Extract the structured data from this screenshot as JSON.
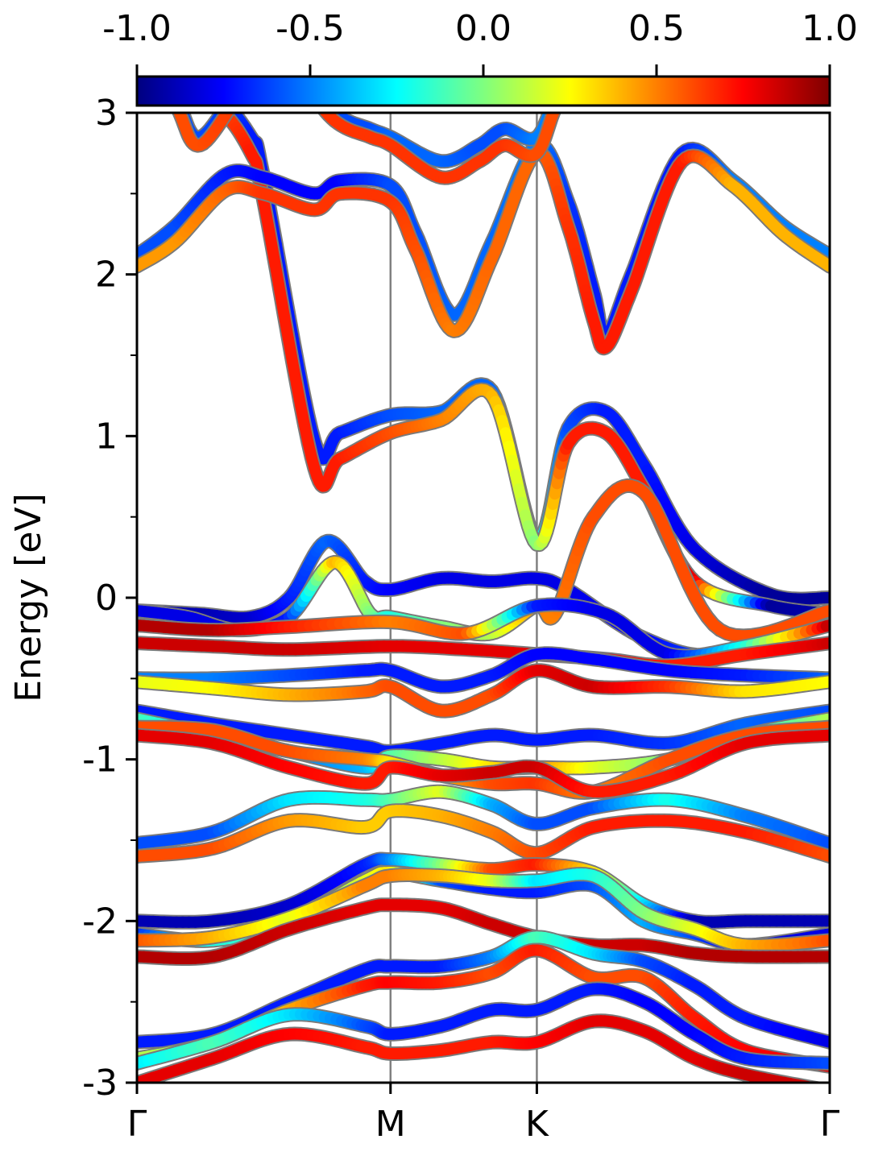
{
  "chart_data": {
    "type": "line",
    "ylabel": "Energy [eV]",
    "xlabel": "",
    "ylim": [
      -3,
      3
    ],
    "y_ticks": [
      "-3",
      "-2",
      "-1",
      "0",
      "1",
      "2",
      "3"
    ],
    "k_path": {
      "labels": [
        "Γ",
        "M",
        "K",
        "Γ"
      ],
      "positions": [
        0,
        1,
        1.577,
        2.732
      ]
    },
    "colorbar": {
      "colormap": "jet",
      "range": [
        -1.0,
        1.0
      ],
      "tick_labels": [
        "-1.0",
        "-0.5",
        "0.0",
        "0.5",
        "1.0"
      ],
      "stops": [
        "#00007f",
        "#0000ff",
        "#007fff",
        "#00ffff",
        "#7fff7f",
        "#ffff00",
        "#ff7f00",
        "#ff0000",
        "#7f0000"
      ]
    },
    "series": [
      {
        "x": [
          0,
          0.3,
          0.45,
          0.5,
          0.7,
          0.8,
          1.0,
          1.2,
          1.4,
          1.577,
          1.7,
          1.85,
          2.0,
          2.2,
          2.5,
          2.732
        ],
        "y": [
          3.2,
          3.1,
          2.85,
          2.6,
          0.97,
          1.02,
          1.13,
          1.15,
          1.28,
          0.36,
          1.05,
          1.15,
          0.82,
          0.3,
          0.02,
          0.0
        ],
        "w": [
          -0.6,
          -0.6,
          -0.7,
          -0.7,
          -0.7,
          -0.7,
          -0.6,
          -0.55,
          -0.55,
          -0.2,
          -0.6,
          -0.7,
          -0.7,
          -0.8,
          -0.95,
          -0.95
        ]
      },
      {
        "x": [
          0,
          0.3,
          0.45,
          0.5,
          0.7,
          0.8,
          1.0,
          1.2,
          1.4,
          1.577,
          1.7,
          1.85,
          2.0,
          2.2,
          2.5,
          2.732
        ],
        "y": [
          3.2,
          3.05,
          2.75,
          2.45,
          0.8,
          0.86,
          1.02,
          1.1,
          1.25,
          0.33,
          0.95,
          1.02,
          0.67,
          0.1,
          -0.05,
          -0.1
        ],
        "w": [
          0.6,
          0.6,
          0.7,
          0.7,
          0.7,
          0.7,
          0.6,
          0.5,
          0.4,
          0.0,
          0.7,
          0.7,
          0.7,
          0.8,
          -0.95,
          -0.9
        ]
      },
      {
        "x": [
          0,
          0.15,
          0.35,
          0.5,
          0.7,
          0.8,
          1.0,
          1.1,
          1.25,
          1.4,
          1.577,
          1.7,
          1.8,
          1.85,
          1.95,
          2.15,
          2.35,
          2.55,
          2.732
        ],
        "y": [
          2.12,
          2.3,
          2.62,
          2.6,
          2.5,
          2.58,
          2.55,
          2.25,
          1.75,
          2.2,
          2.8,
          2.45,
          1.9,
          1.62,
          2.0,
          2.75,
          2.58,
          2.3,
          2.12
        ],
        "w": [
          -0.6,
          -0.6,
          -0.7,
          -0.75,
          -0.75,
          -0.75,
          -0.6,
          -0.6,
          -0.55,
          -0.55,
          -0.5,
          -0.65,
          -0.7,
          -0.7,
          -0.7,
          -0.7,
          -0.5,
          -0.5,
          -0.5
        ]
      },
      {
        "x": [
          0,
          0.15,
          0.35,
          0.5,
          0.7,
          0.8,
          1.0,
          1.1,
          1.25,
          1.4,
          1.577,
          1.7,
          1.8,
          1.85,
          1.95,
          2.15,
          2.35,
          2.55,
          2.732
        ],
        "y": [
          2.05,
          2.2,
          2.52,
          2.5,
          2.4,
          2.5,
          2.45,
          2.15,
          1.65,
          2.1,
          2.75,
          2.3,
          1.72,
          1.55,
          1.9,
          2.7,
          2.55,
          2.25,
          2.05
        ],
        "w": [
          0.45,
          0.45,
          0.55,
          0.65,
          0.65,
          0.65,
          0.65,
          0.6,
          0.5,
          0.55,
          0.55,
          0.65,
          0.7,
          0.7,
          0.7,
          0.7,
          0.4,
          0.4,
          0.4
        ]
      },
      {
        "x": [
          0,
          0.15,
          0.25,
          0.45,
          0.6,
          0.78,
          0.92,
          1.0,
          1.2,
          1.35,
          1.45,
          1.577,
          1.7,
          2.0,
          2.732
        ],
        "y": [
          3.4,
          3.1,
          2.85,
          3.25,
          3.3,
          3.0,
          2.9,
          2.85,
          2.7,
          2.8,
          2.9,
          2.85,
          3.2,
          3.4,
          3.5
        ],
        "w": [
          -0.6,
          -0.6,
          -0.6,
          -0.65,
          -0.65,
          -0.6,
          -0.6,
          -0.55,
          -0.55,
          -0.6,
          -0.6,
          -0.5,
          -0.5,
          -0.5,
          -0.5
        ]
      },
      {
        "x": [
          0,
          0.15,
          0.25,
          0.45,
          0.6,
          0.78,
          0.92,
          1.0,
          1.2,
          1.35,
          1.45,
          1.577,
          1.7,
          2.0,
          2.732
        ],
        "y": [
          3.35,
          3.05,
          2.8,
          3.2,
          3.25,
          2.95,
          2.85,
          2.8,
          2.6,
          2.7,
          2.8,
          2.75,
          3.15,
          3.35,
          3.45
        ],
        "w": [
          0.6,
          0.6,
          0.6,
          0.65,
          0.65,
          0.65,
          0.65,
          0.65,
          0.65,
          0.65,
          0.65,
          0.6,
          0.6,
          0.6,
          0.6
        ]
      },
      {
        "x": [
          0,
          0.25,
          0.45,
          0.6,
          0.75,
          0.9,
          1.0,
          1.2,
          1.4,
          1.577,
          1.7,
          2.0,
          2.3,
          2.732
        ],
        "y": [
          -0.08,
          -0.1,
          -0.12,
          0.0,
          0.35,
          0.1,
          0.05,
          0.12,
          0.1,
          0.12,
          0.05,
          -0.25,
          -0.35,
          -0.08
        ],
        "w": [
          -0.9,
          -0.9,
          -0.85,
          -0.7,
          -0.55,
          -0.7,
          -0.75,
          -0.8,
          -0.8,
          -0.8,
          -0.8,
          -0.75,
          -0.6,
          -0.8
        ]
      },
      {
        "x": [
          0,
          0.2,
          0.4,
          0.6,
          0.78,
          0.92,
          1.0,
          1.2,
          1.4,
          1.577,
          1.65,
          1.8,
          2.0,
          2.3,
          2.732
        ],
        "y": [
          -0.08,
          -0.12,
          -0.2,
          -0.12,
          0.22,
          -0.1,
          -0.12,
          -0.18,
          -0.22,
          -0.05,
          -0.1,
          0.5,
          0.65,
          -0.2,
          -0.08
        ],
        "w": [
          -0.8,
          -0.8,
          -0.8,
          -0.7,
          0.4,
          0.0,
          -0.2,
          0.0,
          0.1,
          0.5,
          0.5,
          0.6,
          0.6,
          0.6,
          0.6
        ]
      },
      {
        "x": [
          0,
          0.3,
          0.6,
          1.0,
          1.3,
          1.577,
          1.85,
          2.1,
          2.4,
          2.732
        ],
        "y": [
          -0.17,
          -0.2,
          -0.18,
          -0.15,
          -0.22,
          -0.05,
          -0.1,
          -0.35,
          -0.3,
          -0.17
        ],
        "w": [
          0.9,
          0.9,
          0.7,
          0.5,
          0.6,
          -0.7,
          -0.8,
          -0.8,
          -0.2,
          0.9
        ]
      },
      {
        "x": [
          0,
          0.3,
          0.6,
          1.0,
          1.3,
          1.577,
          1.85,
          2.1,
          2.4,
          2.732
        ],
        "y": [
          -0.28,
          -0.3,
          -0.32,
          -0.3,
          -0.32,
          -0.35,
          -0.38,
          -0.42,
          -0.35,
          -0.28
        ],
        "w": [
          0.85,
          0.85,
          0.85,
          0.8,
          0.8,
          0.8,
          0.75,
          0.7,
          0.7,
          0.85
        ]
      },
      {
        "x": [
          0,
          0.3,
          0.6,
          0.9,
          1.0,
          1.2,
          1.4,
          1.577,
          1.8,
          2.1,
          2.4,
          2.732
        ],
        "y": [
          -0.5,
          -0.5,
          -0.48,
          -0.45,
          -0.45,
          -0.55,
          -0.48,
          -0.35,
          -0.38,
          -0.45,
          -0.48,
          -0.5
        ],
        "w": [
          -0.5,
          -0.5,
          -0.6,
          -0.7,
          -0.7,
          -0.7,
          -0.7,
          -0.75,
          -0.75,
          -0.75,
          -0.7,
          -0.55
        ]
      },
      {
        "x": [
          0,
          0.3,
          0.6,
          0.9,
          1.0,
          1.2,
          1.4,
          1.577,
          1.8,
          2.1,
          2.4,
          2.732
        ],
        "y": [
          -0.52,
          -0.56,
          -0.6,
          -0.58,
          -0.55,
          -0.7,
          -0.6,
          -0.45,
          -0.55,
          -0.55,
          -0.58,
          -0.52
        ],
        "w": [
          0.2,
          0.25,
          0.4,
          0.55,
          0.6,
          0.6,
          0.6,
          0.8,
          0.85,
          0.65,
          0.3,
          0.25
        ]
      },
      {
        "x": [
          0,
          0.3,
          0.6,
          0.9,
          1.0,
          1.2,
          1.4,
          1.577,
          1.8,
          2.1,
          2.4,
          2.732
        ],
        "y": [
          -0.7,
          -0.78,
          -0.85,
          -0.92,
          -0.95,
          -0.9,
          -0.85,
          -0.88,
          -0.85,
          -0.9,
          -0.78,
          -0.7
        ],
        "w": [
          -0.7,
          -0.7,
          -0.7,
          -0.7,
          -0.7,
          -0.7,
          -0.7,
          -0.7,
          -0.7,
          -0.65,
          -0.55,
          -0.6
        ]
      },
      {
        "x": [
          0,
          0.3,
          0.6,
          0.9,
          1.0,
          1.2,
          1.4,
          1.577,
          1.8,
          2.1,
          2.4,
          2.732
        ],
        "y": [
          -0.75,
          -0.85,
          -0.95,
          -1.05,
          -0.98,
          -1.0,
          -1.05,
          -1.05,
          -1.05,
          -1.0,
          -0.85,
          -0.75
        ],
        "w": [
          -0.1,
          -0.3,
          -0.5,
          -0.4,
          -0.1,
          0.1,
          0.3,
          0.5,
          0.2,
          0.0,
          -0.2,
          0.1
        ]
      },
      {
        "x": [
          0,
          0.3,
          0.6,
          0.9,
          1.0,
          1.2,
          1.4,
          1.577,
          1.8,
          2.1,
          2.4,
          2.732
        ],
        "y": [
          -0.8,
          -0.82,
          -0.95,
          -1.0,
          -1.02,
          -1.1,
          -1.15,
          -1.15,
          -1.2,
          -1.0,
          -0.85,
          -0.8
        ],
        "w": [
          0.6,
          0.6,
          0.6,
          0.5,
          0.3,
          0.4,
          0.6,
          0.65,
          0.5,
          0.6,
          0.6,
          0.6
        ]
      },
      {
        "x": [
          0,
          0.3,
          0.6,
          0.9,
          1.0,
          1.2,
          1.4,
          1.577,
          1.8,
          2.1,
          2.4,
          2.732
        ],
        "y": [
          -0.85,
          -0.9,
          -1.05,
          -1.15,
          -1.05,
          -1.1,
          -1.08,
          -1.05,
          -1.2,
          -1.1,
          -0.9,
          -0.85
        ],
        "w": [
          0.8,
          0.8,
          0.75,
          0.7,
          0.7,
          0.8,
          0.85,
          0.85,
          0.7,
          0.7,
          0.8,
          0.8
        ]
      },
      {
        "x": [
          0,
          0.3,
          0.6,
          0.9,
          1.0,
          1.2,
          1.4,
          1.577,
          1.8,
          2.1,
          2.4,
          2.732
        ],
        "y": [
          -1.52,
          -1.45,
          -1.25,
          -1.25,
          -1.25,
          -1.2,
          -1.28,
          -1.4,
          -1.3,
          -1.25,
          -1.35,
          -1.52
        ],
        "w": [
          -0.6,
          -0.6,
          -0.3,
          -0.2,
          -0.1,
          0.2,
          -0.4,
          -0.6,
          -0.6,
          -0.2,
          -0.5,
          -0.6
        ]
      },
      {
        "x": [
          0,
          0.3,
          0.6,
          0.9,
          1.0,
          1.2,
          1.4,
          1.577,
          1.8,
          2.1,
          2.4,
          2.732
        ],
        "y": [
          -1.6,
          -1.55,
          -1.38,
          -1.42,
          -1.32,
          -1.35,
          -1.45,
          -1.58,
          -1.42,
          -1.38,
          -1.45,
          -1.6
        ],
        "w": [
          0.6,
          0.6,
          0.45,
          0.35,
          0.35,
          0.4,
          0.5,
          0.6,
          0.7,
          0.7,
          0.7,
          0.6
        ]
      },
      {
        "x": [
          0,
          0.3,
          0.6,
          0.9,
          1.0,
          1.2,
          1.4,
          1.577,
          1.8,
          2.0,
          2.2,
          2.4,
          2.732
        ],
        "y": [
          -2.0,
          -2.0,
          -1.9,
          -1.65,
          -1.62,
          -1.65,
          -1.68,
          -1.65,
          -1.7,
          -1.9,
          -2.0,
          -2.0,
          -2.0
        ],
        "w": [
          -0.9,
          -0.9,
          -0.85,
          -0.7,
          -0.5,
          0.0,
          0.6,
          0.7,
          0.3,
          -0.3,
          -0.9,
          -0.9,
          -0.9
        ]
      },
      {
        "x": [
          0,
          0.3,
          0.6,
          0.9,
          1.0,
          1.2,
          1.4,
          1.577,
          1.8,
          2.0,
          2.2,
          2.4,
          2.732
        ],
        "y": [
          -2.08,
          -2.12,
          -2.0,
          -1.75,
          -1.7,
          -1.75,
          -1.8,
          -1.82,
          -1.78,
          -2.0,
          -2.08,
          -2.15,
          -2.08
        ],
        "w": [
          -0.7,
          -0.2,
          -0.1,
          0.2,
          0.3,
          -0.6,
          -0.7,
          -0.7,
          -0.6,
          -0.4,
          -0.6,
          -0.8,
          -0.8
        ]
      },
      {
        "x": [
          0,
          0.3,
          0.6,
          0.9,
          1.0,
          1.2,
          1.4,
          1.577,
          1.8,
          2.0,
          2.2,
          2.4,
          2.732
        ],
        "y": [
          -2.12,
          -2.1,
          -1.98,
          -1.78,
          -1.72,
          -1.72,
          -1.75,
          -1.75,
          -1.72,
          -1.95,
          -2.05,
          -2.15,
          -2.12
        ],
        "w": [
          0.6,
          0.4,
          0.2,
          0.5,
          0.5,
          0.4,
          0.2,
          -0.3,
          -0.2,
          0.0,
          0.2,
          0.4,
          0.6
        ]
      },
      {
        "x": [
          0,
          0.3,
          0.6,
          0.9,
          1.0,
          1.2,
          1.4,
          1.577,
          1.8,
          2.0,
          2.2,
          2.4,
          2.732
        ],
        "y": [
          -2.22,
          -2.22,
          -2.05,
          -1.92,
          -1.9,
          -1.92,
          -2.02,
          -2.1,
          -2.15,
          -2.15,
          -2.2,
          -2.22,
          -2.22
        ],
        "w": [
          0.9,
          0.9,
          0.85,
          0.8,
          0.8,
          0.8,
          0.85,
          0.85,
          0.85,
          0.85,
          0.9,
          0.9,
          0.9
        ]
      },
      {
        "x": [
          0,
          0.3,
          0.6,
          0.9,
          1.0,
          1.2,
          1.4,
          1.577,
          1.8,
          2.0,
          2.2,
          2.4,
          2.732
        ],
        "y": [
          -2.75,
          -2.7,
          -2.5,
          -2.3,
          -2.28,
          -2.28,
          -2.22,
          -2.1,
          -2.2,
          -2.25,
          -2.4,
          -2.6,
          -2.75
        ],
        "w": [
          -0.7,
          -0.7,
          -0.7,
          -0.7,
          -0.7,
          -0.7,
          -0.5,
          -0.1,
          -0.3,
          -0.6,
          -0.7,
          -0.7,
          -0.8
        ]
      },
      {
        "x": [
          0,
          0.3,
          0.6,
          0.9,
          1.0,
          1.2,
          1.4,
          1.577,
          1.8,
          2.0,
          2.2,
          2.4,
          2.732
        ],
        "y": [
          -2.85,
          -2.75,
          -2.55,
          -2.4,
          -2.38,
          -2.38,
          -2.32,
          -2.18,
          -2.35,
          -2.35,
          -2.6,
          -2.8,
          -2.9
        ],
        "w": [
          0.1,
          0.1,
          0.4,
          0.7,
          0.75,
          0.7,
          0.6,
          0.7,
          0.6,
          0.6,
          0.7,
          0.75,
          0.8
        ]
      },
      {
        "x": [
          0,
          0.3,
          0.6,
          0.9,
          1.0,
          1.2,
          1.4,
          1.577,
          1.8,
          2.0,
          2.2,
          2.4,
          2.732
        ],
        "y": [
          -2.88,
          -2.75,
          -2.58,
          -2.65,
          -2.7,
          -2.65,
          -2.55,
          -2.55,
          -2.42,
          -2.5,
          -2.7,
          -2.85,
          -2.88
        ],
        "w": [
          -0.3,
          -0.1,
          -0.3,
          -0.6,
          -0.7,
          -0.7,
          -0.7,
          -0.7,
          -0.7,
          -0.75,
          -0.75,
          -0.7,
          -0.6
        ]
      },
      {
        "x": [
          0,
          0.3,
          0.6,
          0.9,
          1.0,
          1.2,
          1.4,
          1.577,
          1.8,
          2.0,
          2.2,
          2.4,
          2.732
        ],
        "y": [
          -3.0,
          -2.85,
          -2.7,
          -2.78,
          -2.82,
          -2.8,
          -2.75,
          -2.75,
          -2.62,
          -2.68,
          -2.85,
          -2.95,
          -3.05
        ],
        "w": [
          0.8,
          0.8,
          0.75,
          0.7,
          0.7,
          0.7,
          0.7,
          0.75,
          0.8,
          0.8,
          0.8,
          0.85,
          0.85
        ]
      }
    ]
  }
}
